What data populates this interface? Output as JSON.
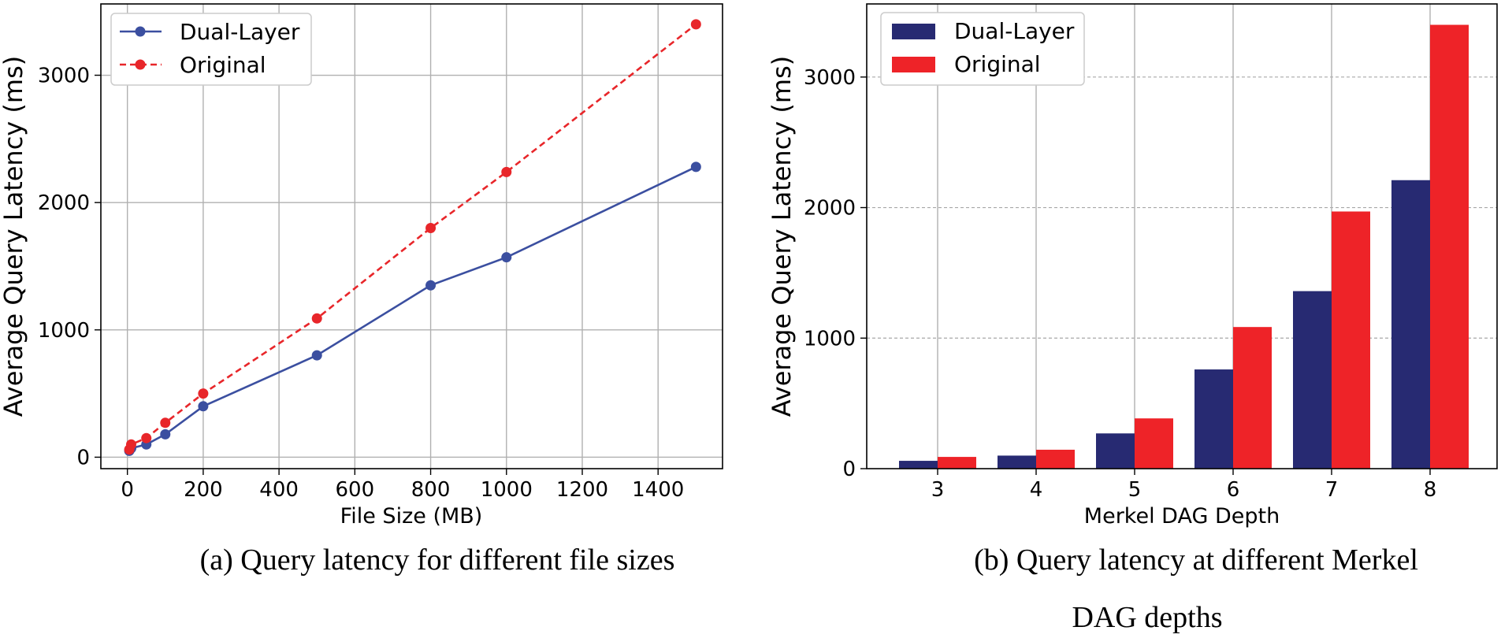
{
  "chart_data": [
    {
      "type": "line",
      "xlabel": "File Size (MB)",
      "ylabel": "Average Query Latency (ms)",
      "xlim": [
        -70,
        1570
      ],
      "ylim": [
        -90,
        3560
      ],
      "xticks": [
        0,
        200,
        400,
        600,
        800,
        1000,
        1200,
        1400
      ],
      "yticks": [
        0,
        1000,
        2000,
        3000
      ],
      "grid": true,
      "legend_position": "top-left",
      "caption": "(a) Query latency for different file sizes",
      "series": [
        {
          "name": "Dual-Layer",
          "color": "#3b4fa0",
          "style": "solid",
          "x": [
            5,
            10,
            50,
            100,
            200,
            500,
            800,
            1000,
            1500
          ],
          "y": [
            50,
            70,
            100,
            180,
            400,
            800,
            1350,
            1570,
            2280
          ]
        },
        {
          "name": "Original",
          "color": "#e8262a",
          "style": "dashed",
          "x": [
            5,
            10,
            50,
            100,
            200,
            500,
            800,
            1000,
            1500
          ],
          "y": [
            60,
            100,
            150,
            270,
            500,
            1090,
            1800,
            2240,
            3400
          ]
        }
      ]
    },
    {
      "type": "bar",
      "xlabel": "Merkel DAG Depth",
      "ylabel": "Average Query Latency (ms)",
      "ylim": [
        0,
        3560
      ],
      "yticks": [
        0,
        1000,
        2000,
        3000
      ],
      "grid": true,
      "legend_position": "top-left",
      "caption_lines": [
        "(b) Query latency at different Merkel",
        "DAG depths"
      ],
      "categories": [
        "3",
        "4",
        "5",
        "6",
        "7",
        "8"
      ],
      "series": [
        {
          "name": "Dual-Layer",
          "color": "#272a72",
          "values": [
            60,
            100,
            270,
            760,
            1360,
            2210
          ]
        },
        {
          "name": "Original",
          "color": "#ee2328",
          "values": [
            90,
            145,
            385,
            1085,
            1970,
            3400
          ]
        }
      ]
    }
  ]
}
